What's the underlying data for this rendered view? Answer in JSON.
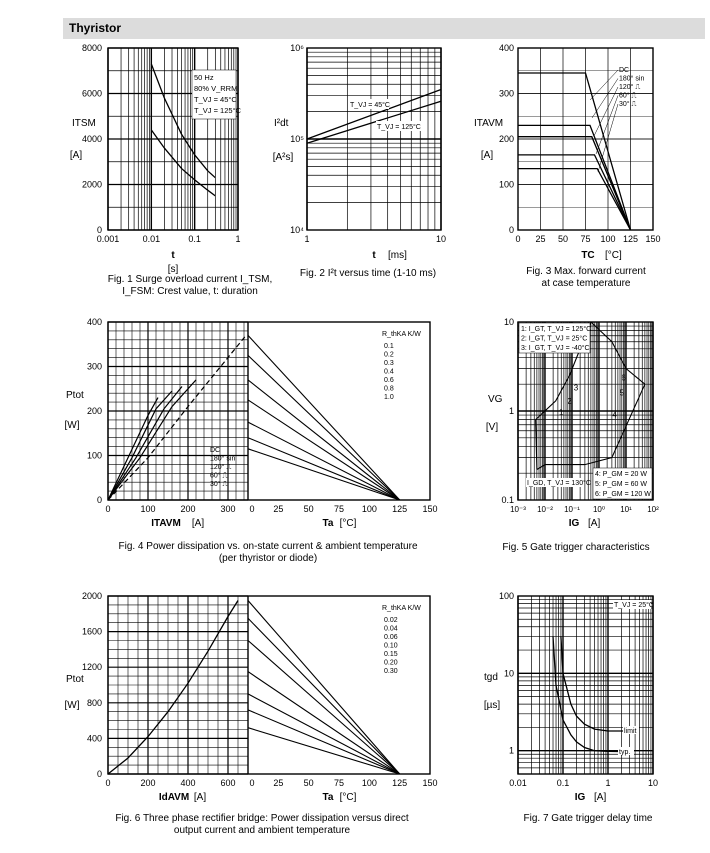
{
  "header": {
    "title": "Thyristor"
  },
  "chart_data": [
    {
      "id": "fig1",
      "type": "line",
      "x_scale": "log",
      "xlabel": "t",
      "xunit": "[s]",
      "ylabel": "I_TSM",
      "yunit": "[A]",
      "xlim": [
        0.001,
        1
      ],
      "ylim": [
        0,
        8000
      ],
      "x_ticks": [
        "0.001",
        "0.01",
        "0.1",
        "1"
      ],
      "y_ticks": [
        "0",
        "2000",
        "4000",
        "6000",
        "8000"
      ],
      "legend": [
        "50 Hz",
        "80% V_RRM",
        "T_VJ = 45°C",
        "T_VJ = 125°C"
      ],
      "series": [
        {
          "name": "T_VJ = 45°C",
          "x": [
            0.01,
            0.02,
            0.05,
            0.1,
            0.2,
            0.3
          ],
          "y": [
            7300,
            5800,
            4200,
            3300,
            2600,
            2300
          ]
        },
        {
          "name": "T_VJ = 125°C",
          "x": [
            0.01,
            0.02,
            0.05,
            0.1,
            0.2,
            0.3
          ],
          "y": [
            4400,
            3600,
            2700,
            2200,
            1750,
            1500
          ]
        }
      ],
      "caption": [
        "Fig. 1  Surge overload current I_TSM,",
        "I_FSM: Crest value, t: duration"
      ]
    },
    {
      "id": "fig2",
      "type": "line",
      "x_scale": "log",
      "y_scale": "log",
      "xlabel": "t",
      "xunit": "[ms]",
      "ylabel": "I²dt",
      "yunit": "[A²s]",
      "xlim": [
        1,
        10
      ],
      "ylim": [
        10000,
        1000000
      ],
      "x_ticks": [
        "1",
        "10"
      ],
      "y_ticks": [
        "10⁴",
        "10⁵",
        "10⁶"
      ],
      "series": [
        {
          "name": "T_VJ = 45°C",
          "x": [
            1,
            10
          ],
          "y": [
            100000,
            350000
          ]
        },
        {
          "name": "T_VJ = 125°C",
          "x": [
            1,
            10
          ],
          "y": [
            90000,
            260000
          ]
        }
      ],
      "caption": [
        "Fig. 2  I²t versus time (1-10 ms)"
      ]
    },
    {
      "id": "fig3",
      "type": "line",
      "xlabel": "T_C",
      "xunit": "[°C]",
      "ylabel": "I_TAVM",
      "yunit": "[A]",
      "xlim": [
        0,
        150
      ],
      "ylim": [
        0,
        400
      ],
      "x_ticks": [
        "0",
        "25",
        "50",
        "75",
        "100",
        "125",
        "150"
      ],
      "y_ticks": [
        "0",
        "100",
        "200",
        "300",
        "400"
      ],
      "legend": [
        "DC",
        "180° sin",
        "120° ⎍",
        "60° ⎍",
        "30° ⎍"
      ],
      "series": [
        {
          "name": "DC",
          "x": [
            0,
            75,
            125
          ],
          "y": [
            345,
            345,
            0
          ]
        },
        {
          "name": "180° sin",
          "x": [
            0,
            80,
            125
          ],
          "y": [
            230,
            230,
            0
          ]
        },
        {
          "name": "120° ⎍",
          "x": [
            0,
            82,
            125
          ],
          "y": [
            205,
            205,
            0
          ]
        },
        {
          "name": "60° ⎍",
          "x": [
            0,
            85,
            125
          ],
          "y": [
            165,
            165,
            0
          ]
        },
        {
          "name": "30° ⎍",
          "x": [
            0,
            88,
            125
          ],
          "y": [
            135,
            135,
            0
          ]
        }
      ],
      "caption": [
        "Fig. 3  Max. forward current",
        "at case temperature"
      ]
    },
    {
      "id": "fig4",
      "type": "line",
      "xlabel_left": "I_TAVM",
      "xunit_left": "[A]",
      "xlabel_right": "T_a",
      "xunit_right": "[°C]",
      "ylabel": "P_tot",
      "yunit": "[W]",
      "xlim_left": [
        0,
        350
      ],
      "xlim_right": [
        0,
        150
      ],
      "ylim": [
        0,
        400
      ],
      "x_ticks_left": [
        "0",
        "100",
        "200",
        "300"
      ],
      "x_ticks_right": [
        "0",
        "25",
        "50",
        "75",
        "100",
        "125",
        "150"
      ],
      "y_ticks": [
        "0",
        "100",
        "200",
        "300",
        "400"
      ],
      "legend": [
        "DC",
        "180° sin",
        "120° ⎍",
        "60° ⎍",
        "30° ⎍"
      ],
      "rthka_label": "R_thKA K/W",
      "rthka": [
        "0.1",
        "0.2",
        "0.3",
        "0.4",
        "0.6",
        "0.8",
        "1.0"
      ],
      "left_series": [
        {
          "name": "DC",
          "x": [
            0,
            100,
            200,
            345
          ],
          "y": [
            0,
            95,
            210,
            370
          ]
        },
        {
          "name": "180° sin",
          "x": [
            0,
            80,
            160,
            220
          ],
          "y": [
            0,
            95,
            210,
            270
          ]
        },
        {
          "name": "120° ⎍",
          "x": [
            0,
            70,
            140,
            185
          ],
          "y": [
            0,
            95,
            205,
            255
          ]
        },
        {
          "name": "60° ⎍",
          "x": [
            0,
            60,
            120,
            160
          ],
          "y": [
            0,
            95,
            205,
            245
          ]
        },
        {
          "name": "30° ⎍",
          "x": [
            0,
            50,
            100,
            125
          ],
          "y": [
            0,
            95,
            190,
            230
          ]
        }
      ],
      "right_lines": [
        {
          "name": "0.1",
          "x": [
            0,
            125
          ],
          "y": [
            370,
            0
          ]
        },
        {
          "name": "0.2",
          "x": [
            0,
            125
          ],
          "y": [
            325,
            0
          ]
        },
        {
          "name": "0.3",
          "x": [
            0,
            125
          ],
          "y": [
            270,
            0
          ]
        },
        {
          "name": "0.4",
          "x": [
            0,
            125
          ],
          "y": [
            225,
            0
          ]
        },
        {
          "name": "0.6",
          "x": [
            0,
            125
          ],
          "y": [
            175,
            0
          ]
        },
        {
          "name": "0.8",
          "x": [
            0,
            125
          ],
          "y": [
            140,
            0
          ]
        },
        {
          "name": "1.0",
          "x": [
            0,
            125
          ],
          "y": [
            115,
            0
          ]
        }
      ],
      "caption": [
        "Fig. 4  Power dissipation vs. on-state current & ambient temperature",
        "(per thyristor or diode)"
      ]
    },
    {
      "id": "fig5",
      "type": "line",
      "x_scale": "log",
      "y_scale": "log",
      "xlabel": "I_G",
      "xunit": "[A]",
      "ylabel": "V_G",
      "yunit": "[V]",
      "xlim": [
        0.001,
        100
      ],
      "ylim": [
        0.1,
        10
      ],
      "x_ticks": [
        "10⁻³",
        "10⁻²",
        "10⁻¹",
        "10⁰",
        "10¹",
        "10²"
      ],
      "y_ticks": [
        "0.1",
        "1",
        "10"
      ],
      "legend_top": [
        "1: I_GT, T_VJ = 125°C",
        "2: I_GT, T_VJ = 25°C",
        "3: I_GT, T_VJ = -40°C"
      ],
      "legend_bottom": [
        "4: P_GM = 20 W",
        "5: P_GM = 60 W",
        "6: P_GM = 120 W"
      ],
      "igd_label": "I_GD, T_VJ = 130°C",
      "markers": [
        "1",
        "2",
        "3",
        "4",
        "5",
        "6"
      ],
      "caption": [
        "Fig. 5  Gate trigger characteristics"
      ]
    },
    {
      "id": "fig6",
      "type": "line",
      "xlabel_left": "I_dAVM",
      "xunit_left": "[A]",
      "xlabel_right": "T_a",
      "xunit_right": "[°C]",
      "ylabel": "P_tot",
      "yunit": "[W]",
      "xlim_left": [
        0,
        700
      ],
      "xlim_right": [
        0,
        150
      ],
      "ylim": [
        0,
        2000
      ],
      "x_ticks_left": [
        "0",
        "200",
        "400",
        "600"
      ],
      "x_ticks_right": [
        "0",
        "25",
        "50",
        "75",
        "100",
        "125",
        "150"
      ],
      "y_ticks": [
        "0",
        "400",
        "800",
        "1200",
        "1600",
        "2000"
      ],
      "rthka_label": "R_thKA K/W",
      "rthka": [
        "0.02",
        "0.04",
        "0.06",
        "0.10",
        "0.15",
        "0.20",
        "0.30"
      ],
      "left_series": [
        {
          "name": "P_tot",
          "x": [
            0,
            100,
            200,
            300,
            400,
            500,
            600,
            650
          ],
          "y": [
            0,
            180,
            420,
            700,
            1020,
            1380,
            1770,
            1950
          ]
        }
      ],
      "right_lines": [
        {
          "name": "0.02",
          "x": [
            0,
            125
          ],
          "y": [
            1950,
            0
          ]
        },
        {
          "name": "0.04",
          "x": [
            0,
            125
          ],
          "y": [
            1750,
            0
          ]
        },
        {
          "name": "0.06",
          "x": [
            0,
            125
          ],
          "y": [
            1500,
            0
          ]
        },
        {
          "name": "0.10",
          "x": [
            0,
            125
          ],
          "y": [
            1150,
            0
          ]
        },
        {
          "name": "0.15",
          "x": [
            0,
            125
          ],
          "y": [
            900,
            0
          ]
        },
        {
          "name": "0.20",
          "x": [
            0,
            125
          ],
          "y": [
            720,
            0
          ]
        },
        {
          "name": "0.30",
          "x": [
            0,
            125
          ],
          "y": [
            520,
            0
          ]
        }
      ],
      "caption": [
        "Fig. 6  Three phase rectifier bridge: Power dissipation versus direct",
        "output current and ambient temperature"
      ]
    },
    {
      "id": "fig7",
      "type": "line",
      "x_scale": "log",
      "y_scale": "log",
      "xlabel": "I_G",
      "xunit": "[A]",
      "ylabel": "t_gd",
      "yunit": "[µs]",
      "xlim": [
        0.01,
        10
      ],
      "ylim": [
        0.5,
        100
      ],
      "x_ticks": [
        "0.01",
        "0.1",
        "1",
        "10"
      ],
      "y_ticks": [
        "1",
        "10",
        "100"
      ],
      "legend": [
        "T_VJ = 25°C"
      ],
      "series": [
        {
          "name": "limit",
          "x": [
            0.09,
            0.1,
            0.15,
            0.2,
            0.3,
            0.5,
            1,
            3
          ],
          "y": [
            30,
            10,
            4,
            2.8,
            2.2,
            1.9,
            1.8,
            1.8
          ]
        },
        {
          "name": "typ.",
          "x": [
            0.06,
            0.07,
            0.1,
            0.15,
            0.2,
            0.3,
            0.5,
            1,
            3
          ],
          "y": [
            30,
            7,
            2.5,
            1.6,
            1.3,
            1.1,
            1.0,
            0.98,
            0.97
          ]
        }
      ],
      "caption": [
        "Fig. 7  Gate trigger delay time"
      ]
    }
  ]
}
